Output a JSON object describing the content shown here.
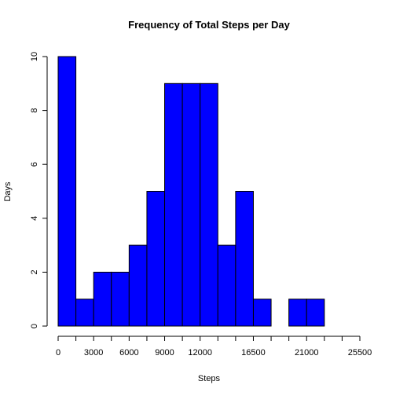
{
  "chart_data": {
    "type": "histogram",
    "title": "Frequency of Total Steps per Day",
    "xlabel": "Steps",
    "ylabel": "Days",
    "bins": [
      0,
      1500,
      3000,
      4500,
      6000,
      7500,
      9000,
      10500,
      12000,
      13500,
      15000,
      16500,
      18000,
      19500,
      21000,
      22500,
      24000,
      25500
    ],
    "values": [
      10,
      1,
      2,
      2,
      3,
      5,
      9,
      9,
      9,
      3,
      5,
      1,
      0,
      1,
      1,
      0,
      0
    ],
    "color": "#0000ff",
    "xlim": [
      0,
      25500
    ],
    "xticks": [
      0,
      3000,
      6000,
      9000,
      12000,
      16500,
      21000,
      25500
    ],
    "x_minor_ticks": [
      1500,
      4500,
      7500,
      10500,
      13500,
      15000,
      18000,
      19500,
      22500,
      24000
    ],
    "ylim": [
      0,
      10
    ],
    "yticks": [
      0,
      2,
      4,
      6,
      8,
      10
    ]
  }
}
